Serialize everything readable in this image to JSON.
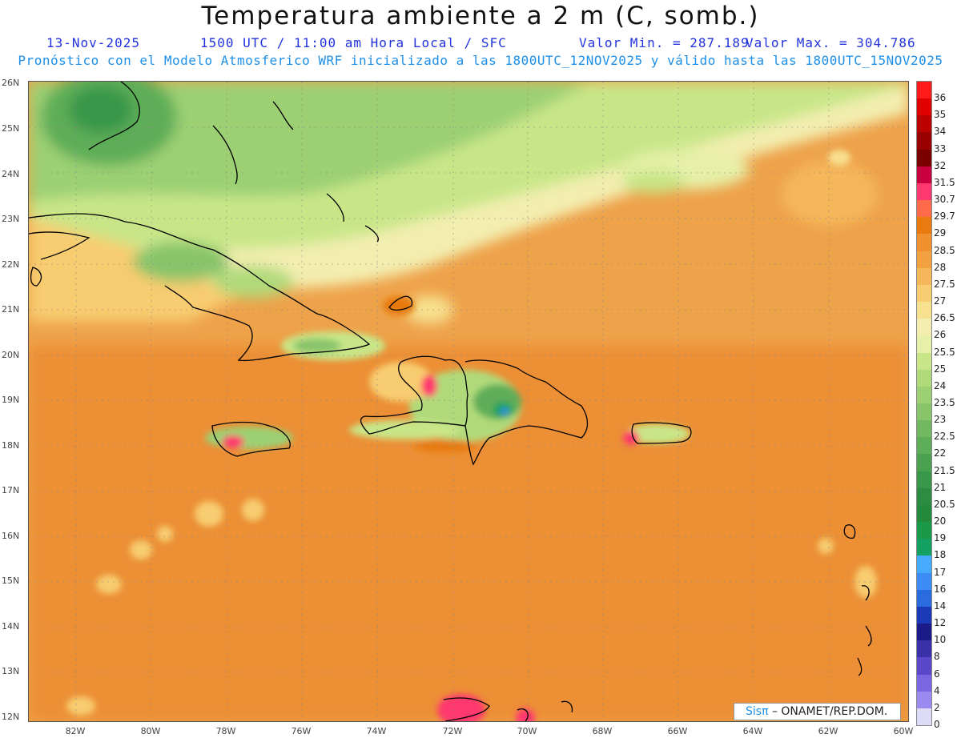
{
  "title": "Temperatura ambiente a 2 m (C, somb.)",
  "info": {
    "date": "13-Nov-2025",
    "time": "1500 UTC / 11:00 am Hora Local / SFC",
    "min": "Valor Min. = 287.189",
    "max": "Valor Max. = 304.786"
  },
  "subtitle": "Pronóstico con el Modelo Atmosferico WRF inicializado a las 1800UTC_12NOV2025 y válido hasta las  1800UTC_15NOV2025",
  "credit": {
    "brand": "Sisπ",
    "org": "– ONAMET/REP.DOM."
  },
  "axes": {
    "lat_labels": [
      "26N",
      "25N",
      "24N",
      "23N",
      "22N",
      "21N",
      "20N",
      "19N",
      "18N",
      "17N",
      "16N",
      "15N",
      "14N",
      "13N",
      "12N"
    ],
    "lon_labels": [
      "82W",
      "80W",
      "78W",
      "76W",
      "74W",
      "72W",
      "70W",
      "68W",
      "66W",
      "64W",
      "62W",
      "60W"
    ]
  },
  "colorbar": {
    "labels": [
      "36",
      "35",
      "34",
      "33",
      "32",
      "31.5",
      "30.7",
      "29.7",
      "29",
      "28.5",
      "28",
      "27.5",
      "27",
      "26.5",
      "26",
      "25.5",
      "25",
      "24",
      "23.5",
      "23",
      "22.5",
      "22",
      "21.5",
      "21",
      "20.5",
      "20",
      "19",
      "18",
      "17",
      "16",
      "14",
      "12",
      "10",
      "8",
      "6",
      "4",
      "2",
      "0"
    ],
    "colors": [
      "#ff1a1a",
      "#e00000",
      "#bb0000",
      "#990000",
      "#7a0000",
      "#c80040",
      "#ff3870",
      "#ff6a4a",
      "#e87a10",
      "#f0902e",
      "#f2a040",
      "#f5b75a",
      "#f8cc70",
      "#f7e08e",
      "#f3eeb0",
      "#e6f0a8",
      "#c8e688",
      "#b0da7a",
      "#9cd073",
      "#88c46a",
      "#72b860",
      "#5ead58",
      "#4aa250",
      "#389748",
      "#2c8c42",
      "#248a3c",
      "#1a9a48",
      "#14a060",
      "#46aaff",
      "#3d8cf5",
      "#2a6ce0",
      "#1a3ab8",
      "#1a1a88",
      "#3a30a8",
      "#5a48c8",
      "#7a66e0",
      "#9a8af0",
      "#dcdcf8"
    ]
  },
  "map": {
    "type": "temperature-field",
    "region": "Caribe",
    "variable": "Temperatura a 2 m"
  }
}
